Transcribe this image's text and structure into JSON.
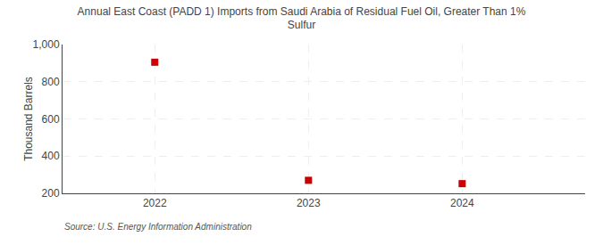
{
  "chart_data": {
    "type": "scatter",
    "title": "Annual East Coast (PADD 1) Imports from Saudi Arabia of Residual Fuel Oil, Greater Than 1%\nSulfur",
    "ylabel": "Thousand Barrels",
    "x": [
      2022,
      2023,
      2024
    ],
    "values": [
      905,
      270,
      252
    ],
    "color": "#cc0000",
    "marker": "square",
    "xlim": [
      2021.4,
      2024.8
    ],
    "xticks": [
      2022,
      2023,
      2024
    ],
    "ylim": [
      200,
      1000
    ],
    "yticks": [
      200,
      400,
      600,
      800,
      {
        "value": 1000,
        "label": "1,000"
      }
    ],
    "grid": true,
    "annotations": [
      "Source: U.S. Energy Information Administration"
    ]
  }
}
